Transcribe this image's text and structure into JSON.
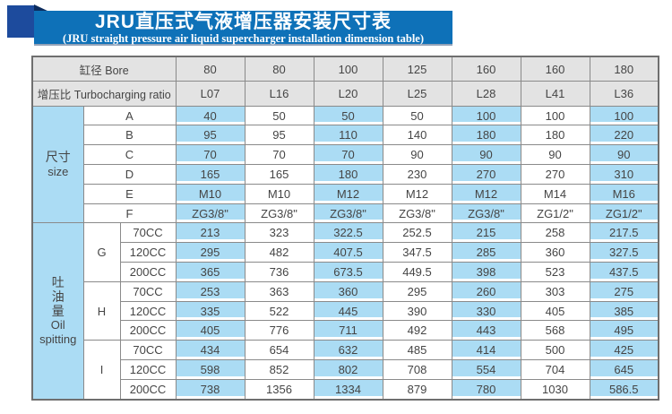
{
  "header": {
    "title_cn": "JRU直压式气液增压器安装尺寸表",
    "title_en": "(JRU straight pressure air liquid supercharger installation dimension table)"
  },
  "colors": {
    "banner_blue": "#0e71b8",
    "square_blue": "#1d4b9d",
    "fold_navy": "#0c2c5e",
    "cell_blue": "#abdcf4",
    "header_gray": "#e3e3e3",
    "text_dark": "#454545"
  },
  "table": {
    "bore_row": {
      "label": "缸径 Bore",
      "values": [
        "80",
        "80",
        "100",
        "125",
        "160",
        "160",
        "180"
      ]
    },
    "ratio_row": {
      "label": "增压比 Turbocharging ratio",
      "values": [
        "L07",
        "L16",
        "L20",
        "L25",
        "L28",
        "L41",
        "L36"
      ]
    },
    "size_section": {
      "label_cn": "尺寸",
      "label_en": "size",
      "rows": [
        {
          "name": "A",
          "values": [
            "40",
            "50",
            "50",
            "50",
            "100",
            "100",
            "100"
          ]
        },
        {
          "name": "B",
          "values": [
            "95",
            "95",
            "110",
            "140",
            "180",
            "180",
            "220"
          ]
        },
        {
          "name": "C",
          "values": [
            "70",
            "70",
            "70",
            "90",
            "90",
            "90",
            "90"
          ]
        },
        {
          "name": "D",
          "values": [
            "165",
            "165",
            "180",
            "230",
            "270",
            "270",
            "310"
          ]
        },
        {
          "name": "E",
          "values": [
            "M10",
            "M10",
            "M12",
            "M12",
            "M12",
            "M14",
            "M16"
          ]
        },
        {
          "name": "F",
          "values": [
            "ZG3/8\"",
            "ZG3/8\"",
            "ZG3/8\"",
            "ZG3/8\"",
            "ZG3/8\"",
            "ZG1/2\"",
            "ZG1/2\""
          ]
        }
      ]
    },
    "oil_section": {
      "label_cn": "吐油量",
      "label_en_line1": "Oil",
      "label_en_line2": "spitting",
      "groups": [
        {
          "name": "G",
          "rows": [
            {
              "cc": "70CC",
              "values": [
                "213",
                "323",
                "322.5",
                "252.5",
                "215",
                "258",
                "217.5"
              ]
            },
            {
              "cc": "120CC",
              "values": [
                "295",
                "482",
                "407.5",
                "347.5",
                "285",
                "360",
                "327.5"
              ]
            },
            {
              "cc": "200CC",
              "values": [
                "365",
                "736",
                "673.5",
                "449.5",
                "398",
                "523",
                "437.5"
              ]
            }
          ]
        },
        {
          "name": "H",
          "rows": [
            {
              "cc": "70CC",
              "values": [
                "253",
                "363",
                "360",
                "295",
                "260",
                "303",
                "275"
              ]
            },
            {
              "cc": "120CC",
              "values": [
                "335",
                "522",
                "445",
                "390",
                "330",
                "405",
                "385"
              ]
            },
            {
              "cc": "200CC",
              "values": [
                "405",
                "776",
                "711",
                "492",
                "443",
                "568",
                "495"
              ]
            }
          ]
        },
        {
          "name": "I",
          "rows": [
            {
              "cc": "70CC",
              "values": [
                "434",
                "654",
                "632",
                "485",
                "414",
                "500",
                "425"
              ]
            },
            {
              "cc": "120CC",
              "values": [
                "598",
                "852",
                "802",
                "708",
                "554",
                "704",
                "645"
              ]
            },
            {
              "cc": "200CC",
              "values": [
                "738",
                "1356",
                "1334",
                "879",
                "780",
                "1030",
                "586.5"
              ]
            }
          ]
        }
      ]
    }
  }
}
